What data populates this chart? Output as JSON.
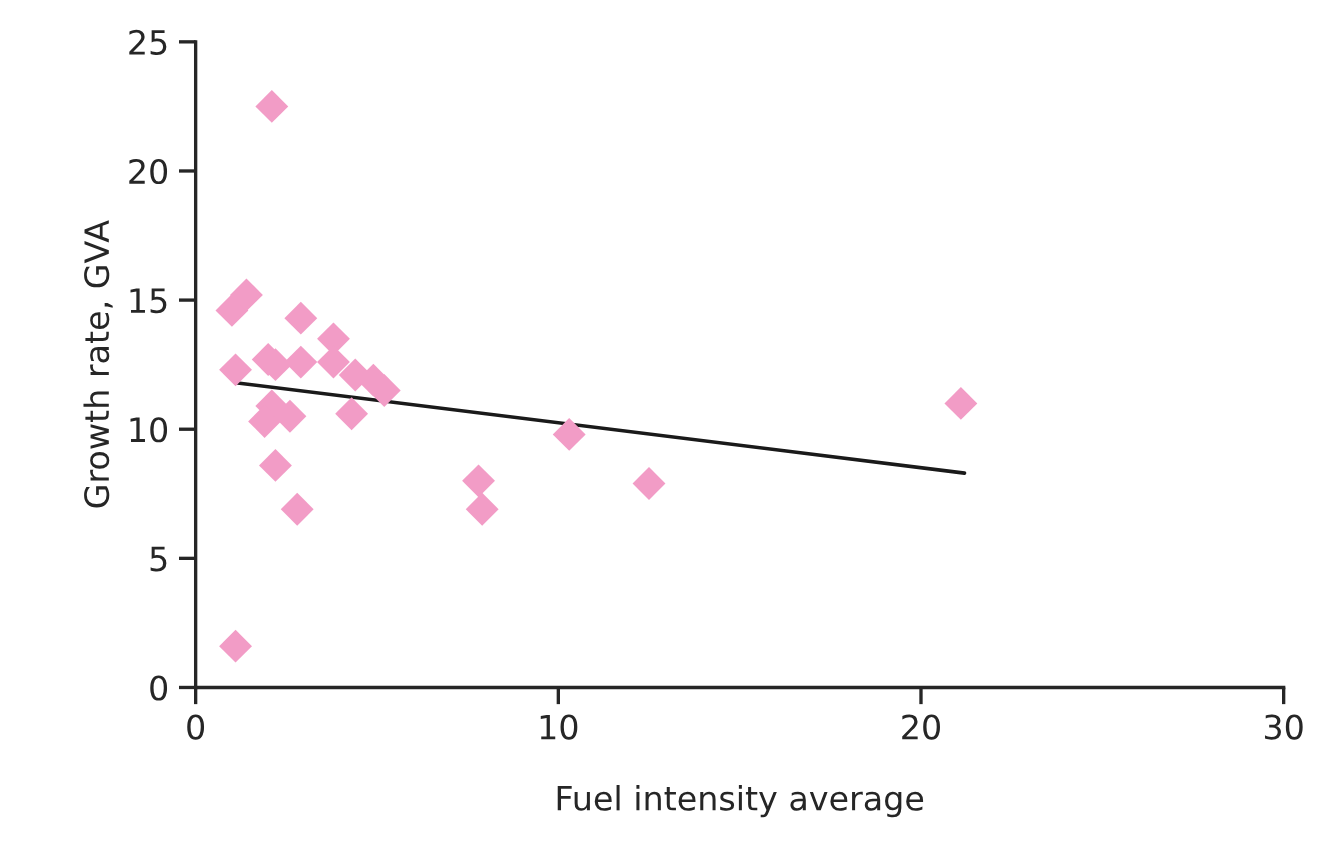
{
  "chart_data": {
    "type": "scatter",
    "xlabel": "Fuel intensity average",
    "ylabel": "Growth rate, GVA",
    "xlim": [
      0,
      30
    ],
    "ylim": [
      0,
      25
    ],
    "xticks": [
      0,
      10,
      20,
      30
    ],
    "yticks": [
      0,
      5,
      10,
      15,
      20,
      25
    ],
    "grid": false,
    "marker": "diamond",
    "series": [
      {
        "color": "#f29cc6",
        "x": [
          2.1,
          1.0,
          1.4,
          2.9,
          1.1,
          2.0,
          2.2,
          2.9,
          3.8,
          3.8,
          4.4,
          4.9,
          5.2,
          2.1,
          1.9,
          2.6,
          4.3,
          2.2,
          2.8,
          7.8,
          7.9,
          10.3,
          12.5,
          21.1,
          1.1
        ],
        "values": [
          22.5,
          14.6,
          15.2,
          14.3,
          12.3,
          12.7,
          12.5,
          12.6,
          13.5,
          12.6,
          12.1,
          11.9,
          11.5,
          10.9,
          10.3,
          10.5,
          10.6,
          8.6,
          6.9,
          8.0,
          6.9,
          9.8,
          7.9,
          11.0,
          1.6
        ]
      },
      {
        "type": "line",
        "color": "#1a1a1a",
        "x": [
          1.1,
          21.2
        ],
        "values": [
          11.8,
          8.3
        ],
        "marker": "none"
      }
    ]
  }
}
